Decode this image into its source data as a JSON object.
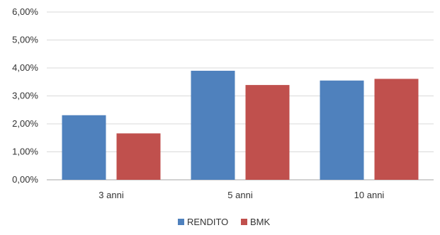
{
  "chart_data": {
    "type": "bar",
    "categories": [
      "3 anni",
      "5 anni",
      "10 anni"
    ],
    "series": [
      {
        "name": "RENDITO",
        "color": "#4f81bd",
        "values": [
          2.31,
          3.9,
          3.55
        ]
      },
      {
        "name": "BMK",
        "color": "#c0504d",
        "values": [
          1.66,
          3.39,
          3.61
        ]
      }
    ],
    "y_ticks": [
      "0,00%",
      "1,00%",
      "2,00%",
      "3,00%",
      "4,00%",
      "5,00%",
      "6,00%"
    ],
    "ylim": [
      0,
      6
    ],
    "grid": true,
    "legend_position": "bottom",
    "title": "",
    "xlabel": "",
    "ylabel": ""
  }
}
